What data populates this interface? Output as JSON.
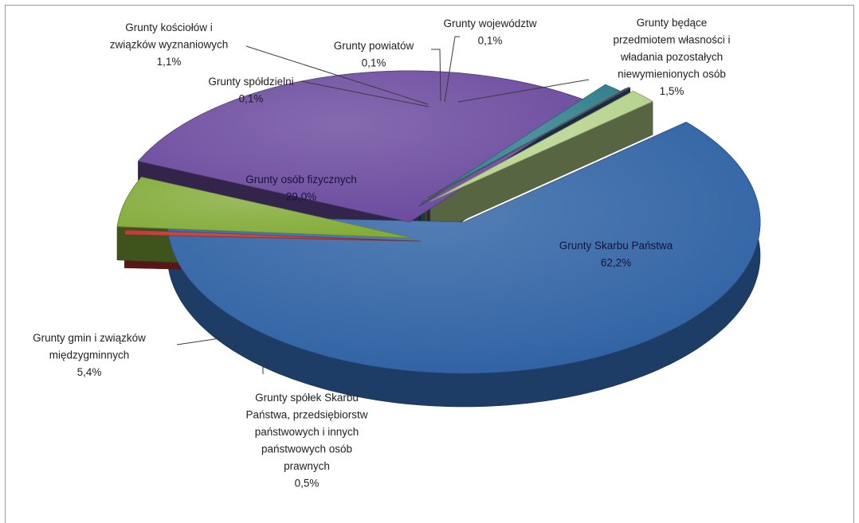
{
  "chart_data": {
    "type": "pie",
    "title": "",
    "categories": [
      "Grunty Skarbu Państwa",
      "Grunty spółek Skarbu Państwa, przedsiębiorstw państwowych i innych państwowych osób prawnych",
      "Grunty gmin i związków międzygminnych",
      "Grunty osób fizycznych",
      "Grunty spółdzielni",
      "Grunty kościołów i związków wyznaniowych",
      "Grunty powiatów",
      "Grunty województw",
      "Grunty będące przedmiotem własności i władania pozostałych niewymienionych osób"
    ],
    "values": [
      62.2,
      0.5,
      5.4,
      29.0,
      0.1,
      1.1,
      0.1,
      0.1,
      1.5
    ],
    "value_labels": [
      "62,2%",
      "0,5%",
      "5,4%",
      "29,0%",
      "0,1%",
      "1,1%",
      "0,1%",
      "0,1%",
      "1,5%"
    ],
    "colors": [
      "#2f62a4",
      "#b7322f",
      "#84ac3a",
      "#6b4a9e",
      "#23536b",
      "#2e7e8c",
      "#e8821f",
      "#3e5a82",
      "#b6d28c"
    ],
    "label_lines": [
      [
        "Grunty Skarbu  Państwa",
        "62,2%"
      ],
      [
        "Grunty spółek  Skarbu",
        "Państwa, przedsiębiorstw",
        "państwowych i innych",
        "państwowych osób",
        "prawnych",
        "0,5%"
      ],
      [
        "Grunty gmin  i związków",
        "międzygminnych",
        "5,4%"
      ],
      [
        "Grunty osób  fizycznych",
        "29,0%"
      ],
      [
        "Grunty spółdzielni",
        "0,1%"
      ],
      [
        "Grunty kościołów  i",
        "związków  wyznaniowych",
        "1,1%"
      ],
      [
        "Grunty powiatów",
        "0,1%"
      ],
      [
        "Grunty województw",
        "0,1%"
      ],
      [
        "Grunty będące",
        "przedmiotem własności i",
        "władania  pozostałych",
        "niewymienionych osób",
        "1,5%"
      ]
    ],
    "exploded": true,
    "three_d": true,
    "legend": "none"
  }
}
